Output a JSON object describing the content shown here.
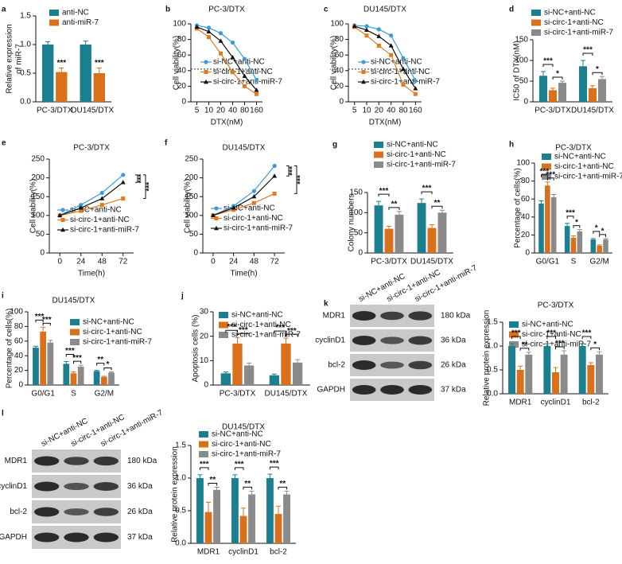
{
  "chart_data": [
    {
      "label": "a",
      "type": "bar",
      "ylabel": [
        "Relative expression",
        "of miR-7"
      ],
      "categories": [
        "PC-3/DTX",
        "DU145/DTX"
      ],
      "series": [
        {
          "name": "anti-NC",
          "color": "#1b7f8f",
          "values": [
            1.0,
            1.0
          ],
          "errors": [
            0.05,
            0.06
          ]
        },
        {
          "name": "anti-miR-7",
          "color": "#d8701c",
          "values": [
            0.52,
            0.5
          ],
          "errors": [
            0.07,
            0.09
          ]
        }
      ],
      "ylim": [
        0,
        1.5
      ],
      "yticks": [
        {
          "value": 0,
          "label": "0.0"
        },
        0.5,
        {
          "value": 1,
          "label": "1.0"
        },
        1.5
      ],
      "significance": [
        [
          "***"
        ],
        [
          "***"
        ]
      ]
    },
    {
      "label": "b",
      "type": "line",
      "title": "PC-3/DTX",
      "xlabel": "DTX(nM)",
      "ylabel": "Cell viability(%)",
      "categories": [
        "5",
        "10",
        "20",
        "40",
        "80",
        "160"
      ],
      "series": [
        {
          "name": "si-NC+anti-NC",
          "color": "#3b9ad9",
          "marker": "circle",
          "values": [
            98,
            95,
            88,
            76,
            55,
            28
          ]
        },
        {
          "name": "si-circ-1+anti-NC",
          "color": "#e07b22",
          "marker": "square",
          "values": [
            94,
            83,
            62,
            38,
            20,
            10
          ]
        },
        {
          "name": "si-circ-1+anti-miR-7",
          "color": "#111111",
          "marker": "triangle",
          "values": [
            96,
            90,
            78,
            57,
            33,
            15
          ]
        }
      ],
      "ylim": [
        0,
        100
      ],
      "yticks": [
        0,
        20,
        40,
        60,
        80,
        100
      ],
      "hline": 42
    },
    {
      "label": "c",
      "type": "line",
      "title": "DU145/DTX",
      "xlabel": "DTX(nM)",
      "ylabel": "Cell viability(%)",
      "categories": [
        "5",
        "10",
        "20",
        "40",
        "80",
        "160"
      ],
      "series": [
        {
          "name": "si-NC+anti-NC",
          "color": "#3b9ad9",
          "marker": "circle",
          "values": [
            98,
            97,
            93,
            85,
            56,
            27
          ]
        },
        {
          "name": "si-circ-1+anti-NC",
          "color": "#e07b22",
          "marker": "square",
          "values": [
            96,
            85,
            72,
            60,
            22,
            10
          ]
        },
        {
          "name": "si-circ-1+anti-miR-7",
          "color": "#111111",
          "marker": "triangle",
          "values": [
            97,
            92,
            84,
            72,
            42,
            17
          ]
        }
      ],
      "ylim": [
        0,
        100
      ],
      "yticks": [
        0,
        20,
        40,
        60,
        80,
        100
      ],
      "hline": 42
    },
    {
      "label": "d",
      "type": "bar",
      "ylabel": "IC50 of DTX(nM)",
      "categories": [
        "PC-3/DTX",
        "DU145/DTX"
      ],
      "series": [
        {
          "name": "si-NC+anti-NC",
          "color": "#1b7f8f",
          "values": [
            63,
            86
          ],
          "errors": [
            10,
            14
          ]
        },
        {
          "name": "si-circ-1+anti-NC",
          "color": "#d8701c",
          "values": [
            28,
            33
          ],
          "errors": [
            5,
            6
          ]
        },
        {
          "name": "si-circ-1+anti-miR-7",
          "color": "#8a8a8a",
          "values": [
            46,
            55
          ],
          "errors": [
            4,
            6
          ]
        }
      ],
      "ylim": [
        0,
        150
      ],
      "yticks": [
        0,
        50,
        100,
        150
      ],
      "significance": [
        [
          "***",
          "*"
        ],
        [
          "***",
          "*"
        ]
      ]
    },
    {
      "label": "e",
      "type": "line",
      "title": "PC-3/DTX",
      "xlabel": "Time(h)",
      "ylabel": "Cell viability(%)",
      "x": [
        0,
        24,
        48,
        72
      ],
      "series": [
        {
          "name": "si-NC+anti-NC",
          "color": "#3b9ad9",
          "marker": "circle",
          "values": [
            100,
            128,
            160,
            208
          ]
        },
        {
          "name": "si-circ-1+anti-NC",
          "color": "#e07b22",
          "marker": "square",
          "values": [
            100,
            112,
            128,
            145
          ]
        },
        {
          "name": "si-circ-1+anti-miR-7",
          "color": "#111111",
          "marker": "triangle",
          "values": [
            100,
            120,
            145,
            188
          ]
        }
      ],
      "xlim": [
        -12,
        84
      ],
      "xticks": [
        0,
        24,
        48,
        72
      ],
      "ylim": [
        0,
        250
      ],
      "yticks": [
        0,
        50,
        100,
        150,
        200,
        250
      ],
      "significance": [
        "***",
        "***"
      ]
    },
    {
      "label": "f",
      "type": "line",
      "title": "DU145/DTX",
      "xlabel": "Time(h)",
      "ylabel": "Cell viability(%)",
      "x": [
        0,
        24,
        48,
        72
      ],
      "series": [
        {
          "name": "si-NC+anti-NC",
          "color": "#3b9ad9",
          "marker": "circle",
          "values": [
            100,
            125,
            165,
            232
          ]
        },
        {
          "name": "si-circ-1+anti-NC",
          "color": "#e07b22",
          "marker": "square",
          "values": [
            100,
            115,
            133,
            158
          ]
        },
        {
          "name": "si-circ-1+anti-miR-7",
          "color": "#111111",
          "marker": "triangle",
          "values": [
            100,
            120,
            150,
            205
          ]
        }
      ],
      "xlim": [
        -12,
        84
      ],
      "xticks": [
        0,
        24,
        48,
        72
      ],
      "ylim": [
        0,
        250
      ],
      "yticks": [
        0,
        50,
        100,
        150,
        200,
        250
      ],
      "significance": [
        "***",
        "***"
      ]
    },
    {
      "label": "g",
      "type": "bar",
      "ylabel": "Colony numbers",
      "categories": [
        "PC-3/DTX",
        "DU145/DTX"
      ],
      "series": [
        {
          "name": "si-NC+anti-NC",
          "color": "#1b7f8f",
          "values": [
            118,
            124
          ],
          "errors": [
            10,
            10
          ]
        },
        {
          "name": "si-circ-1+anti-NC",
          "color": "#d8701c",
          "values": [
            60,
            62
          ],
          "errors": [
            6,
            8
          ]
        },
        {
          "name": "si-circ-1+anti-miR-7",
          "color": "#8a8a8a",
          "values": [
            95,
            100
          ],
          "errors": [
            8,
            6
          ]
        }
      ],
      "ylim": [
        0,
        150
      ],
      "yticks": [
        0,
        50,
        100,
        150
      ],
      "significance": [
        [
          "***",
          "**"
        ],
        [
          "***",
          "**"
        ]
      ]
    },
    {
      "label": "h",
      "type": "bar",
      "title": "PC-3/DTX",
      "ylabel": "Percentage of cells(%)",
      "categories": [
        "G0/G1",
        "S",
        "G2/M"
      ],
      "series": [
        {
          "name": "si-NC+anti-NC",
          "color": "#1b7f8f",
          "values": [
            55,
            30,
            15
          ],
          "errors": [
            3,
            3,
            1
          ]
        },
        {
          "name": "si-circ-1+anti-NC",
          "color": "#d8701c",
          "values": [
            75,
            17,
            8
          ],
          "errors": [
            4,
            2,
            1
          ]
        },
        {
          "name": "si-circ-1+anti-miR-7",
          "color": "#8a8a8a",
          "values": [
            62,
            24,
            15
          ],
          "errors": [
            3,
            2,
            1
          ]
        }
      ],
      "ylim": [
        0,
        100
      ],
      "yticks": [
        0,
        20,
        40,
        60,
        80,
        100
      ],
      "significance": [
        [
          "***",
          "***"
        ],
        [
          "***",
          "*"
        ],
        [
          "*",
          "*"
        ]
      ]
    },
    {
      "label": "i",
      "type": "bar",
      "title": "DU145/DTX",
      "ylabel": "Percentage of cells(%)",
      "categories": [
        "G0/G1",
        "S",
        "G2/M"
      ],
      "series": [
        {
          "name": "si-NC+anti-NC",
          "color": "#1b7f8f",
          "values": [
            51,
            29,
            19
          ],
          "errors": [
            2,
            3,
            1
          ]
        },
        {
          "name": "si-circ-1+anti-NC",
          "color": "#d8701c",
          "values": [
            73,
            16,
            11
          ],
          "errors": [
            6,
            2,
            1
          ]
        },
        {
          "name": "si-circ-1+anti-miR-7",
          "color": "#8a8a8a",
          "values": [
            58,
            25,
            17
          ],
          "errors": [
            3,
            2,
            1
          ]
        }
      ],
      "ylim": [
        0,
        100
      ],
      "yticks": [
        0,
        20,
        40,
        60,
        80,
        100
      ],
      "significance": [
        [
          "***",
          "***"
        ],
        [
          "***",
          "***"
        ],
        [
          "**",
          "*"
        ]
      ]
    },
    {
      "label": "j",
      "type": "bar",
      "ylabel": "Apoptosis cells (%)",
      "categories": [
        "PC-3/DTX",
        "DU145/DTX"
      ],
      "series": [
        {
          "name": "si-NC+anti-NC",
          "color": "#1b7f8f",
          "values": [
            4.8,
            4
          ],
          "errors": [
            0.6,
            0.5
          ]
        },
        {
          "name": "si-circ-1+anti-NC",
          "color": "#d8701c",
          "values": [
            17,
            17
          ],
          "errors": [
            2.5,
            2.2
          ]
        },
        {
          "name": "si-circ-1+anti-miR-7",
          "color": "#8a8a8a",
          "values": [
            8,
            9.2
          ],
          "errors": [
            1,
            1.2
          ]
        }
      ],
      "ylim": [
        0,
        30
      ],
      "yticks": [
        0,
        10,
        20,
        30
      ],
      "significance": [
        [
          "***",
          "***"
        ],
        [
          "***",
          "***"
        ]
      ]
    },
    {
      "label": "k",
      "type": "bar",
      "title": "PC-3/DTX",
      "ylabel": "Relative protein expression",
      "categories": [
        "MDR1",
        "cyclinD1",
        "bcl-2"
      ],
      "series": [
        {
          "name": "si-NC+anti-NC",
          "color": "#1b7f8f",
          "values": [
            1,
            1,
            1
          ],
          "errors": [
            0.05,
            0.05,
            0.05
          ]
        },
        {
          "name": "si-circ-1+anti-NC",
          "color": "#d8701c",
          "values": [
            0.5,
            0.45,
            0.6
          ],
          "errors": [
            0.08,
            0.1,
            0.05
          ]
        },
        {
          "name": "si-circ-1+anti-miR-7",
          "color": "#8a8a8a",
          "values": [
            0.82,
            0.82,
            0.82
          ],
          "errors": [
            0.05,
            0.08,
            0.06
          ]
        }
      ],
      "ylim": [
        0,
        1.5
      ],
      "yticks": [
        {
          "value": 0,
          "label": "0.0"
        },
        0.5,
        {
          "value": 1,
          "label": "1.0"
        },
        1.5
      ],
      "significance": [
        [
          "***",
          "**"
        ],
        [
          "***",
          "***"
        ],
        [
          "***",
          "*"
        ]
      ],
      "blot": {
        "lanes": [
          "si-NC+anti-NC",
          "si-circ-1+anti-NC",
          "si-circ-1+anti-miR-7"
        ],
        "proteins": [
          "MDR1",
          "cyclinD1",
          "bcl-2",
          "GAPDH"
        ],
        "sizes": [
          "180 kDa",
          "36 kDa",
          "26 kDa",
          "37 kDa"
        ]
      }
    },
    {
      "label": "l",
      "type": "bar",
      "title": "DU145/DTX",
      "ylabel": "Relative protein expression",
      "categories": [
        "MDR1",
        "cyclinD1",
        "bcl-2"
      ],
      "series": [
        {
          "name": "si-NC+anti-NC",
          "color": "#1b7f8f",
          "values": [
            1,
            1,
            1
          ],
          "errors": [
            0.05,
            0.05,
            0.06
          ]
        },
        {
          "name": "si-circ-1+anti-NC",
          "color": "#d8701c",
          "values": [
            0.48,
            0.42,
            0.45
          ],
          "errors": [
            0.15,
            0.12,
            0.12
          ]
        },
        {
          "name": "si-circ-1+anti-miR-7",
          "color": "#8a8a8a",
          "values": [
            0.82,
            0.75,
            0.75
          ],
          "errors": [
            0.04,
            0.05,
            0.05
          ]
        }
      ],
      "ylim": [
        0,
        1.5
      ],
      "yticks": [
        {
          "value": 0,
          "label": "0.0"
        },
        0.5,
        {
          "value": 1,
          "label": "1.0"
        },
        1.5
      ],
      "significance": [
        [
          "***",
          "**"
        ],
        [
          "***",
          "**"
        ],
        [
          "***",
          "**"
        ]
      ],
      "blot": {
        "lanes": [
          "si-NC+anti-NC",
          "si-circ-1+anti-NC",
          "si-circ-1+anti-miR-7"
        ],
        "proteins": [
          "MDR1",
          "cyclinD1",
          "bcl-2",
          "GAPDH"
        ],
        "sizes": [
          "180 kDa",
          "36 kDa",
          "26 kDa",
          "37 kDa"
        ]
      }
    }
  ]
}
